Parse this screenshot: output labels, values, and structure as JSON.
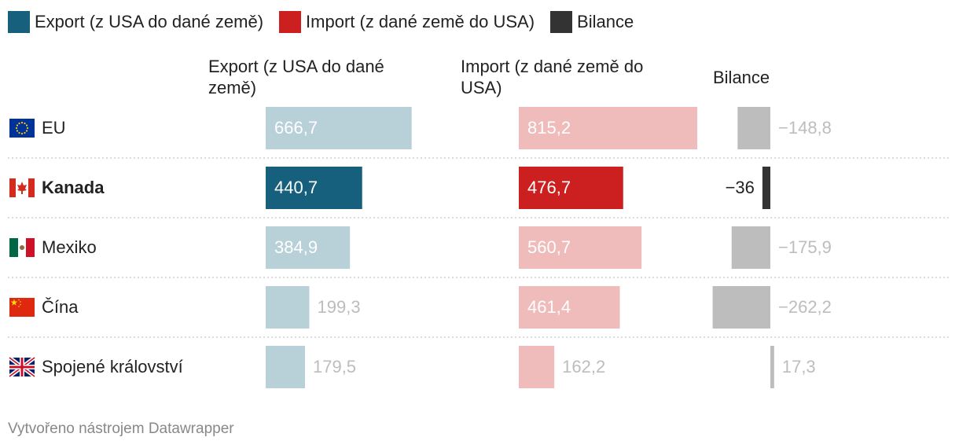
{
  "legend": [
    {
      "label": "Export (z USA do dané země)",
      "color": "#17607d"
    },
    {
      "label": "Import (z dané země do USA)",
      "color": "#cc1f1f"
    },
    {
      "label": "Bilance",
      "color": "#333333"
    }
  ],
  "headers": {
    "export": "Export (z USA do dané země)",
    "import": "Import (z dané země do USA)",
    "balance": "Bilance"
  },
  "chart_data": {
    "type": "table",
    "columns": [
      "Export (z USA do dané země)",
      "Import (z dané země do USA)",
      "Bilance"
    ],
    "rows": [
      {
        "label": "EU",
        "flag": "eu-flag",
        "highlight": false,
        "export": 666.7,
        "import": 815.2,
        "balance": -148.8,
        "export_label": "666,7",
        "import_label": "815,2",
        "balance_label": "−148,8"
      },
      {
        "label": "Kanada",
        "flag": "canada-flag",
        "highlight": true,
        "export": 440.7,
        "import": 476.7,
        "balance": -36,
        "export_label": "440,7",
        "import_label": "476,7",
        "balance_label": "−36"
      },
      {
        "label": "Mexiko",
        "flag": "mexico-flag",
        "highlight": false,
        "export": 384.9,
        "import": 560.7,
        "balance": -175.9,
        "export_label": "384,9",
        "import_label": "560,7",
        "balance_label": "−175,9"
      },
      {
        "label": "Čína",
        "flag": "china-flag",
        "highlight": false,
        "export": 199.3,
        "import": 461.4,
        "balance": -262.2,
        "export_label": "199,3",
        "import_label": "461,4",
        "balance_label": "−262,2"
      },
      {
        "label": "Spojené království",
        "flag": "uk-flag",
        "highlight": false,
        "export": 179.5,
        "import": 162.2,
        "balance": 17.3,
        "export_label": "179,5",
        "import_label": "162,2",
        "balance_label": "17,3"
      }
    ],
    "colors": {
      "export": "#17607d",
      "export_muted": "#b8d0d8",
      "import": "#cc1f1f",
      "import_muted": "#efbbbb",
      "balance": "#333333",
      "balance_muted": "#bdbdbd",
      "label_on_bar": "#ffffff",
      "label_muted": "#bdbdbd",
      "label_dark": "#222222"
    }
  },
  "footer": "Vytvořeno nástrojem Datawrapper"
}
